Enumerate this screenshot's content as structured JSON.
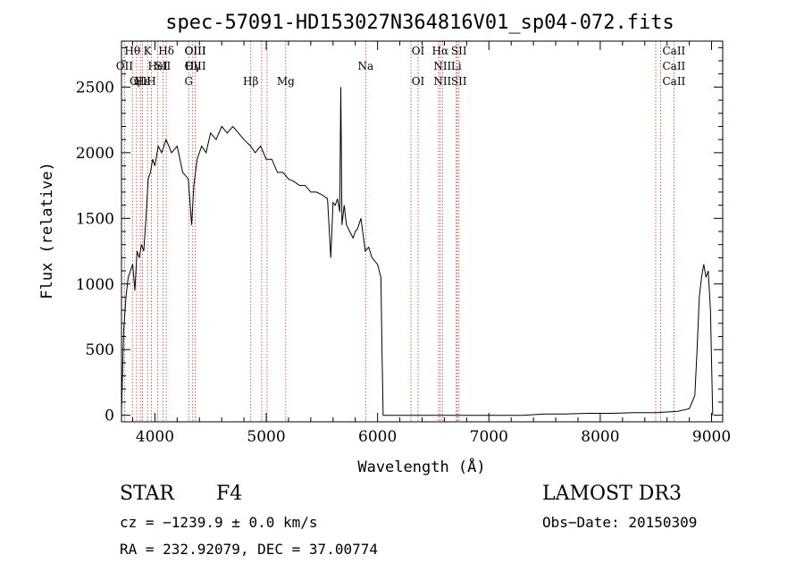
{
  "chart_data": {
    "type": "line",
    "title": "spec-57091-HD153027N364816V01_sp04-072.fits",
    "xlabel": "Wavelength (Å)",
    "ylabel": "Flux (relative)",
    "xlim": [
      3700,
      9100
    ],
    "ylim": [
      -50,
      2850
    ],
    "xticks": [
      4000,
      5000,
      6000,
      7000,
      8000,
      9000
    ],
    "yticks": [
      0,
      500,
      1000,
      1500,
      2000,
      2500
    ],
    "x_minor_step": 200,
    "y_minor_step": 100,
    "grid": false,
    "series": [
      {
        "x": [
          3700,
          3720,
          3740,
          3760,
          3780,
          3800,
          3820,
          3840,
          3860,
          3880,
          3900,
          3920,
          3940,
          3960,
          3980,
          4000,
          4030,
          4060,
          4100,
          4150,
          4200,
          4250,
          4300,
          4330,
          4350,
          4380,
          4420,
          4460,
          4500,
          4550,
          4600,
          4650,
          4700,
          4750,
          4800,
          4860,
          4900,
          4950,
          5000,
          5050,
          5100,
          5150,
          5200,
          5250,
          5300,
          5350,
          5400,
          5450,
          5500,
          5550,
          5580,
          5600,
          5620,
          5640,
          5660,
          5670,
          5680,
          5700,
          5720,
          5750,
          5780,
          5800,
          5820,
          5850,
          5870,
          5890,
          5920,
          5950,
          6000,
          6030,
          6040,
          6050,
          6100,
          6500,
          7000,
          7200,
          7300,
          7500,
          7700,
          7900,
          8100,
          8300,
          8500,
          8700,
          8800,
          8850,
          8870,
          8890,
          8910,
          8930,
          8950,
          8970,
          8990,
          9010
        ],
        "y": [
          30,
          650,
          900,
          1050,
          1100,
          1150,
          950,
          1250,
          1200,
          1300,
          1250,
          1500,
          1800,
          1850,
          1950,
          1900,
          2050,
          2000,
          2100,
          2000,
          2050,
          1850,
          1800,
          1450,
          1750,
          1950,
          2050,
          2000,
          2150,
          2100,
          2200,
          2150,
          2200,
          2150,
          2100,
          2050,
          2000,
          2050,
          1950,
          1950,
          1850,
          1850,
          1800,
          1780,
          1750,
          1750,
          1700,
          1700,
          1680,
          1650,
          1200,
          1620,
          1600,
          1650,
          1550,
          2500,
          1450,
          1600,
          1450,
          1400,
          1350,
          1400,
          1420,
          1500,
          1380,
          1250,
          1280,
          1200,
          1150,
          1050,
          500,
          0,
          0,
          0,
          0,
          0,
          0,
          10,
          10,
          15,
          15,
          20,
          20,
          30,
          50,
          150,
          500,
          900,
          1050,
          1150,
          1050,
          1100,
          800,
          0
        ]
      }
    ],
    "lines": [
      {
        "label": "Hθ",
        "x": 3798
      },
      {
        "label": "OII",
        "x": 3727
      },
      {
        "label": "OIII",
        "x": 3869
      },
      {
        "label": "Hε",
        "x": 3889
      },
      {
        "label": "K",
        "x": 3934
      },
      {
        "label": "H",
        "x": 3969
      },
      {
        "label": "HeI",
        "x": 4026
      },
      {
        "label": "SII",
        "x": 4072
      },
      {
        "label": "Hδ",
        "x": 4102
      },
      {
        "label": "η",
        "x": 3835
      },
      {
        "label": "G",
        "x": 4304
      },
      {
        "label": "Hγ",
        "x": 4340
      },
      {
        "label": "OIII",
        "x": 4363
      },
      {
        "label": "Hβ",
        "x": 4861
      },
      {
        "label": "OIII",
        "x": 4959
      },
      {
        "label": "OIII",
        "x": 5007
      },
      {
        "label": "Mg",
        "x": 5175
      },
      {
        "label": "Na",
        "x": 5893
      },
      {
        "label": "OI",
        "x": 6300
      },
      {
        "label": "OI",
        "x": 6364
      },
      {
        "label": "NII",
        "x": 6548
      },
      {
        "label": "Hα",
        "x": 6563
      },
      {
        "label": "NII",
        "x": 6583
      },
      {
        "label": "Li",
        "x": 6707
      },
      {
        "label": "SII",
        "x": 6716
      },
      {
        "label": "SII",
        "x": 6731
      },
      {
        "label": "CaII",
        "x": 8498
      },
      {
        "label": "CaII",
        "x": 8542
      },
      {
        "label": "CaII",
        "x": 8662
      }
    ]
  },
  "labels_row1": [
    "Hθ",
    "K",
    "Hδ",
    "OIII",
    "OIII",
    "OI",
    "Hα",
    "SII",
    "CaII"
  ],
  "labels_row2": [
    "OII",
    "HeI",
    "SII",
    "Hγ",
    "OIII",
    "Na",
    "NII",
    "Li",
    "CaII"
  ],
  "labels_row3": [
    "OIII",
    "Hε",
    "η",
    "H",
    "G",
    "Hβ",
    "Mg",
    "OI",
    "NII",
    "SII",
    "CaII"
  ],
  "info": {
    "class": "STAR",
    "subclass": "F4",
    "survey": "LAMOST DR3",
    "cz": "cz = −1239.9 ± 0.0 km/s",
    "obs_date": "Obs−Date: 20150309",
    "coords": "RA = 232.92079, DEC =  37.00774"
  },
  "colors": {
    "axis": "#000000",
    "line": "#000000",
    "marker": "#c0392b"
  }
}
